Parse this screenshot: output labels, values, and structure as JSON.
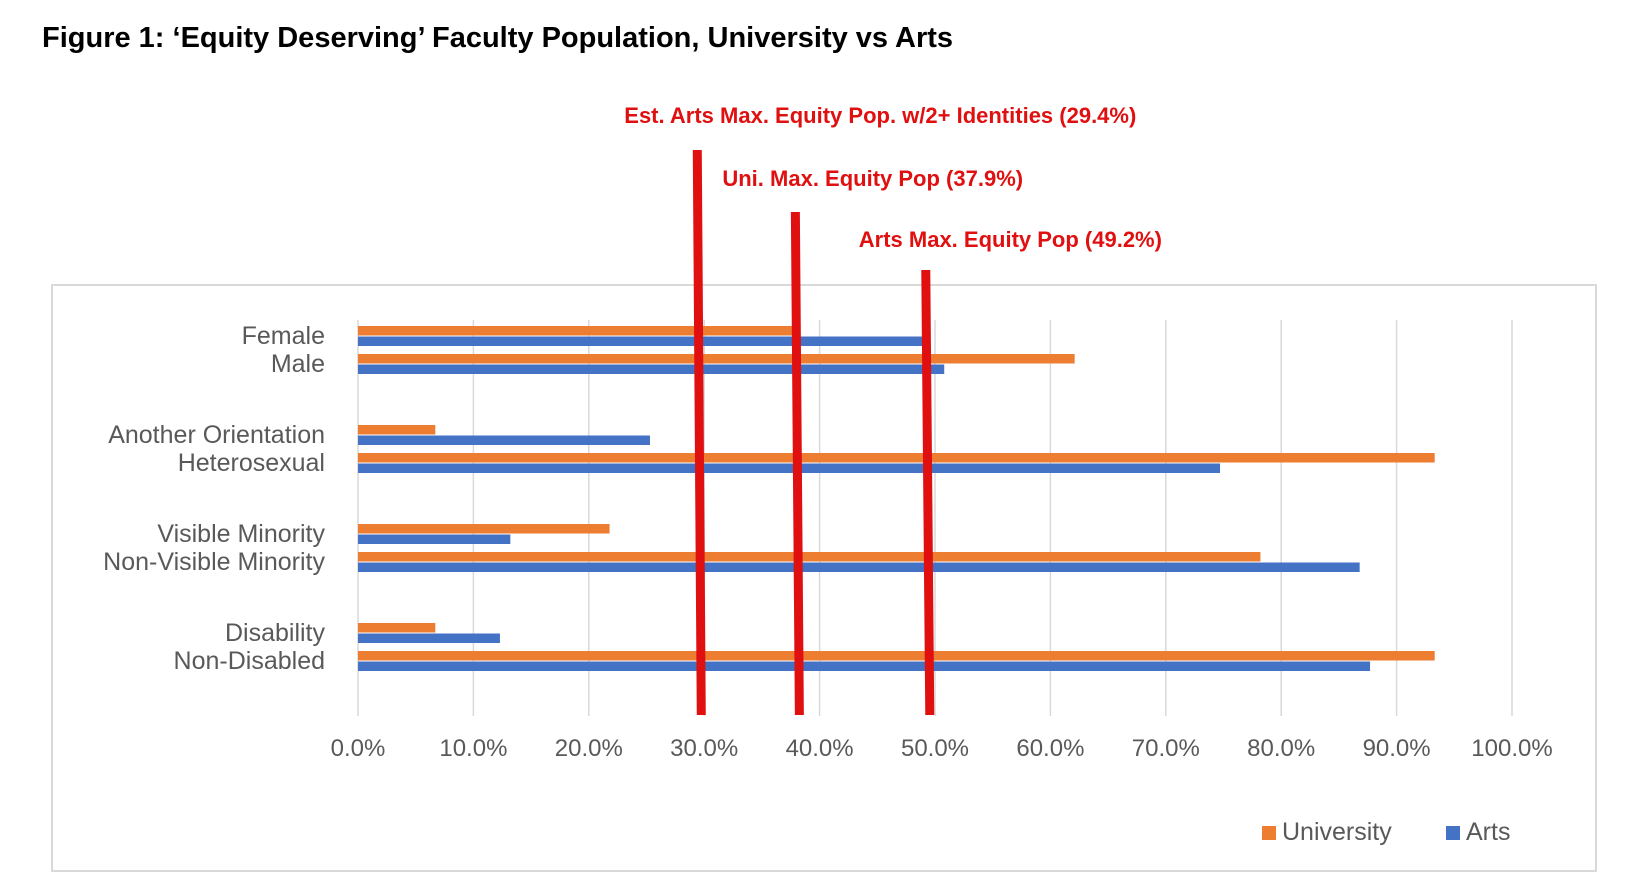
{
  "figure": {
    "title": "Figure 1: ‘Equity Deserving’ Faculty Population, University vs Arts"
  },
  "colors": {
    "university": "#ED7D31",
    "arts": "#4472C4",
    "annotation": "#E01010",
    "grid": "#D9D9D9",
    "text": "#595959"
  },
  "chart_data": {
    "type": "bar",
    "orientation": "horizontal",
    "title": "",
    "xlabel": "",
    "ylabel": "",
    "xlim": [
      0,
      100
    ],
    "grid": true,
    "legend_position": "bottom-right",
    "x_ticks": [
      "0.0%",
      "10.0%",
      "20.0%",
      "30.0%",
      "40.0%",
      "50.0%",
      "60.0%",
      "70.0%",
      "80.0%",
      "90.0%",
      "100.0%"
    ],
    "categories": [
      "Female",
      "Male",
      "Another Orientation",
      "Heterosexual",
      "Visible Minority",
      "Non-Visible Minority",
      "Disability",
      "Non-Disabled"
    ],
    "series": [
      {
        "name": "University",
        "values": [
          37.9,
          62.1,
          6.7,
          93.3,
          21.8,
          78.2,
          6.7,
          93.3
        ]
      },
      {
        "name": "Arts",
        "values": [
          49.2,
          50.8,
          25.3,
          74.7,
          13.2,
          86.8,
          12.3,
          87.7
        ]
      }
    ],
    "annotations": [
      {
        "text": "Est. Arts Max. Equity Pop. w/2+ Identities (29.4%)",
        "value": 29.4
      },
      {
        "text": "Uni. Max. Equity Pop (37.9%)",
        "value": 37.9
      },
      {
        "text": "Arts Max. Equity Pop (49.2%)",
        "value": 49.2
      }
    ]
  }
}
